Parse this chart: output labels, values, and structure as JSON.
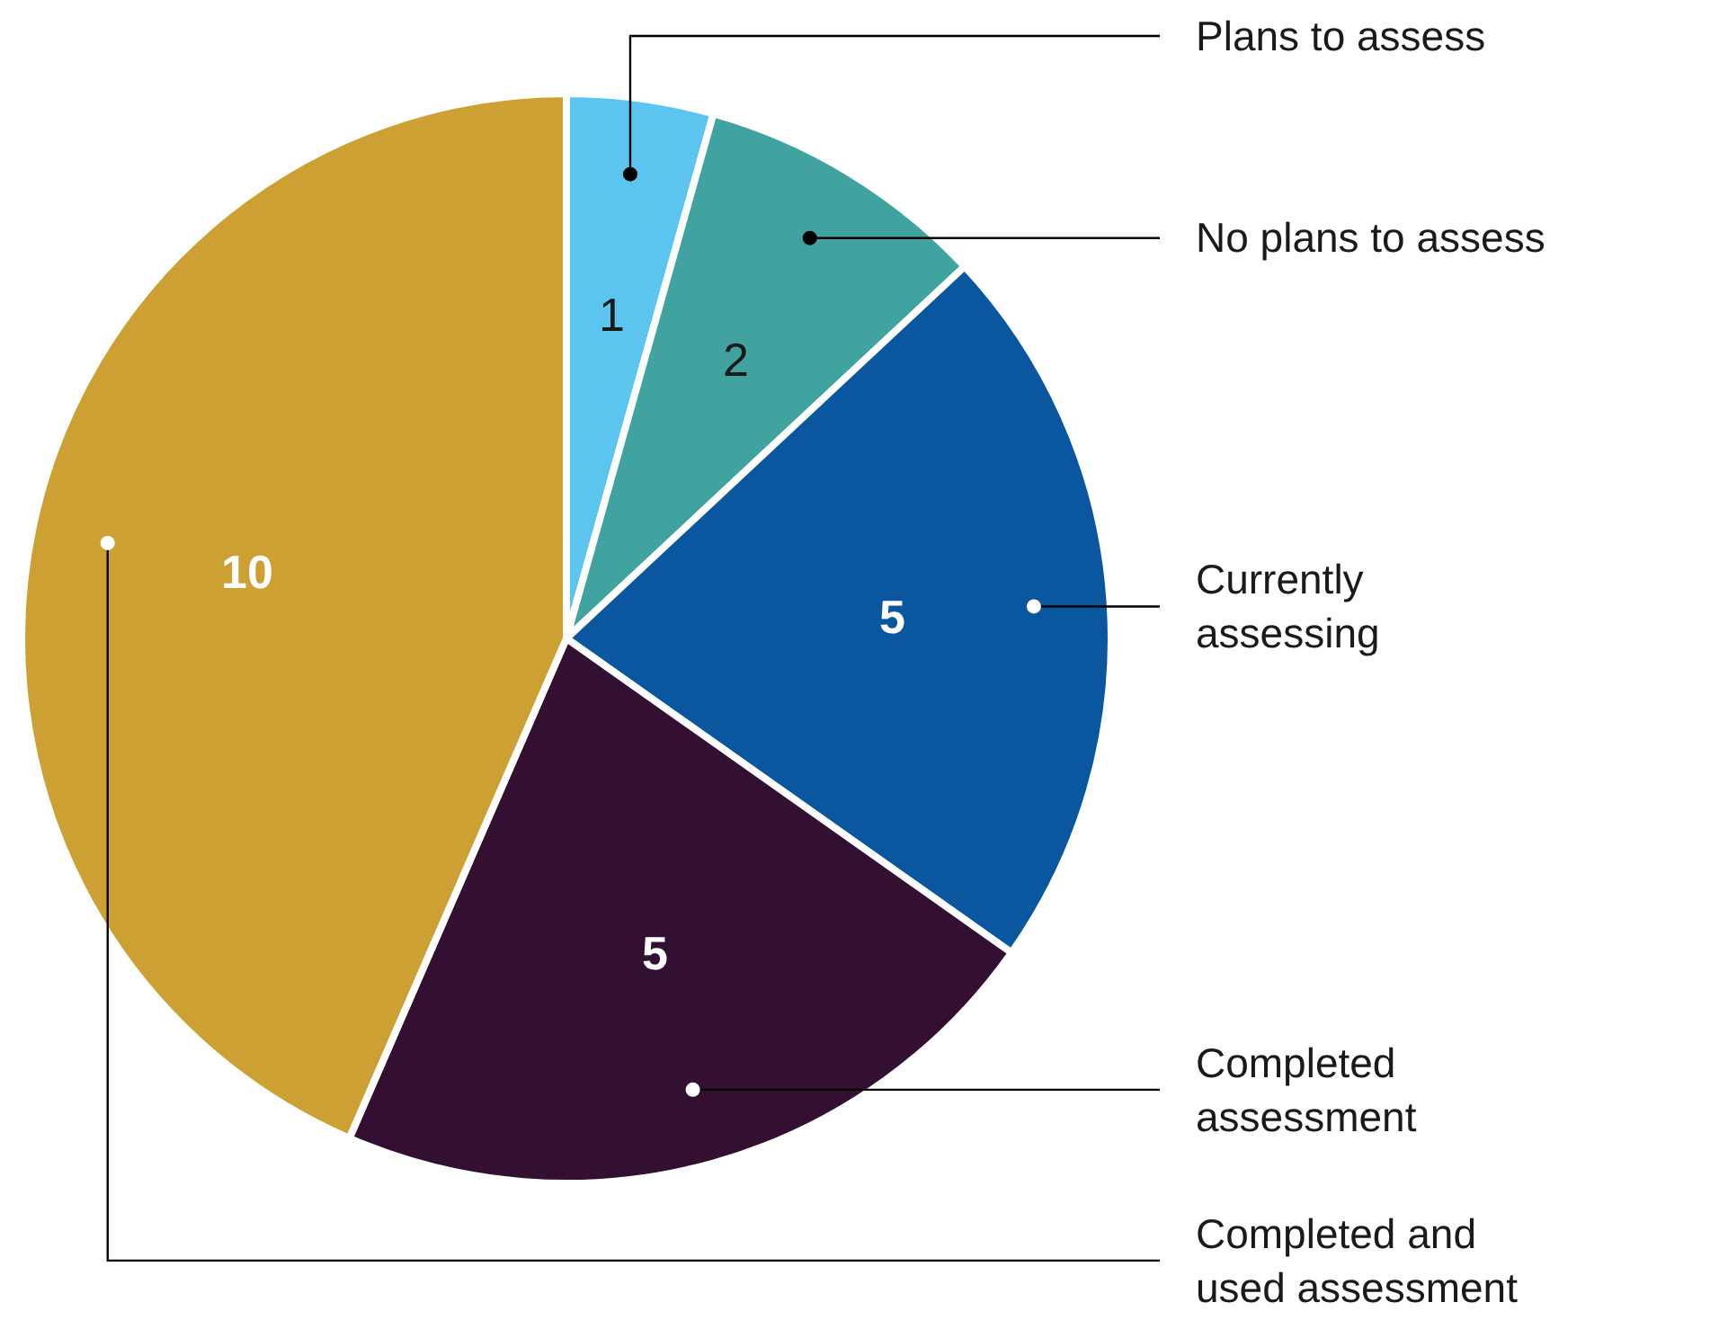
{
  "chart_data": {
    "type": "pie",
    "categories": [
      "Plans to assess",
      "No plans to assess",
      "Currently assessing",
      "Completed assessment",
      "Completed and used assessment"
    ],
    "values": [
      1,
      2,
      5,
      5,
      10
    ],
    "colors": [
      "#5cc5ef",
      "#40a39f",
      "#0a57a0",
      "#330f31",
      "#cda034"
    ],
    "data_labels": true
  }
}
